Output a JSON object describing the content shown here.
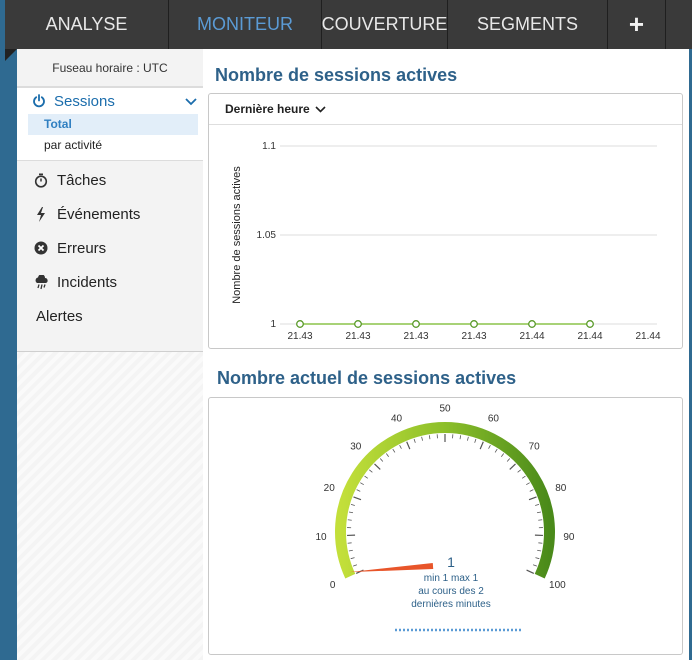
{
  "nav": {
    "tabs": [
      {
        "label": "ANALYSE",
        "active": false
      },
      {
        "label": "MONITEUR",
        "active": true
      },
      {
        "label": "COUVERTURE",
        "active": false
      },
      {
        "label": "SEGMENTS",
        "active": false
      }
    ],
    "plus_label": "+"
  },
  "sidebar": {
    "timezone": "Fuseau horaire : UTC",
    "sessions": {
      "label": "Sessions",
      "icon": "power-icon",
      "subitems": [
        {
          "label": "Total",
          "selected": true
        },
        {
          "label": "par activité",
          "selected": false
        }
      ]
    },
    "items": [
      {
        "label": "Tâches",
        "icon": "stopwatch-icon"
      },
      {
        "label": "Événements",
        "icon": "bolt-icon"
      },
      {
        "label": "Erreurs",
        "icon": "error-circle-icon"
      },
      {
        "label": "Incidents",
        "icon": "storm-cloud-icon"
      },
      {
        "label": "Alertes",
        "icon": ""
      }
    ]
  },
  "main": {
    "section1_title": "Nombre de sessions actives",
    "range_selector": "Dernière heure",
    "section2_title": "Nombre actuel de sessions actives"
  },
  "chart_data": [
    {
      "type": "line",
      "title": "",
      "ylabel": "Nombre de sessions actives",
      "xlabel": "",
      "ylim": [
        1,
        1.1
      ],
      "y_ticks": [
        "1",
        "1.05",
        "1.1"
      ],
      "x_ticks": [
        "21.43",
        "21.43",
        "21.43",
        "21.43",
        "21.44",
        "21.44",
        "21.44"
      ],
      "series": [
        {
          "points": [
            {
              "x": "21.43",
              "y": 1
            },
            {
              "x": "21.43",
              "y": 1
            },
            {
              "x": "21.43",
              "y": 1
            },
            {
              "x": "21.43",
              "y": 1
            },
            {
              "x": "21.44",
              "y": 1
            },
            {
              "x": "21.44",
              "y": 1
            }
          ]
        }
      ],
      "grid": true,
      "color": "#8bc34a"
    },
    {
      "type": "gauge",
      "value": 1,
      "value_label": "1",
      "min": 0,
      "max": 100,
      "tick_labels": [
        "0",
        "10",
        "20",
        "30",
        "40",
        "50",
        "60",
        "70",
        "80",
        "90",
        "100"
      ],
      "caption_line1": "min 1 max 1",
      "caption_line2": "au cours des 2",
      "caption_line3": "dernières minutes",
      "needle_color": "#e8552a",
      "arc_color_start": "#c3df3a",
      "arc_color_end": "#4a8a1a"
    }
  ]
}
